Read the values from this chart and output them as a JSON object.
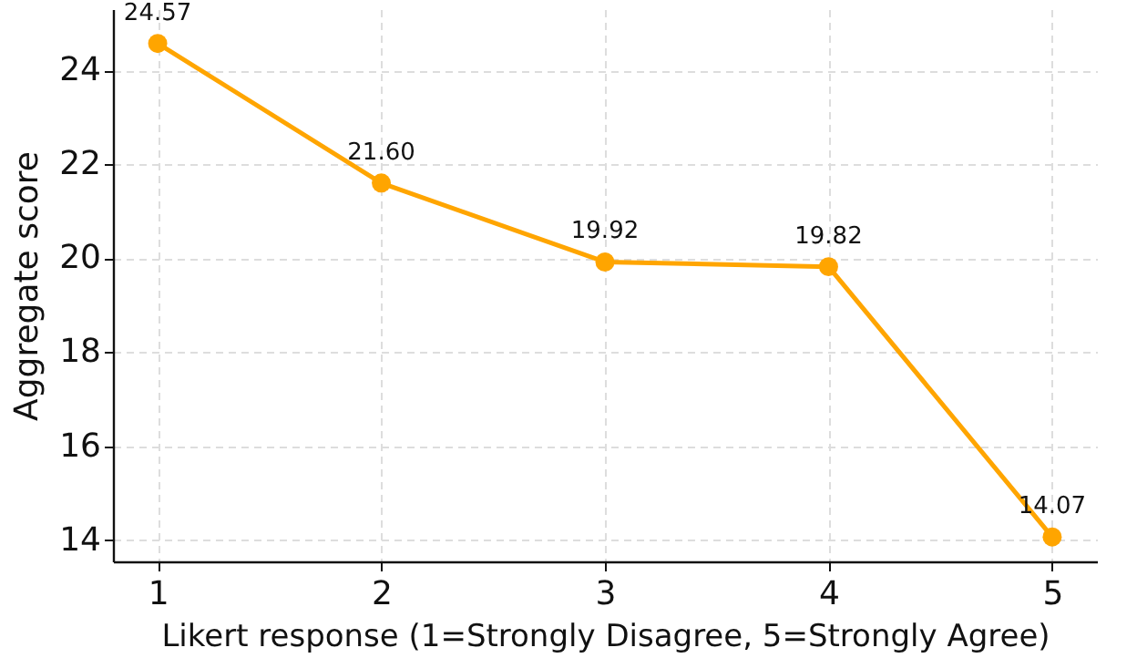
{
  "chart_data": {
    "type": "line",
    "xlabel": "Likert response (1=Strongly Disagree, 5=Strongly Agree)",
    "ylabel": "Aggregate score",
    "x": [
      1,
      2,
      3,
      4,
      5
    ],
    "series": [
      {
        "color": "#ffa500",
        "values": [
          24.57,
          21.6,
          19.92,
          19.82,
          14.07
        ]
      }
    ],
    "value_labels": [
      "24.57",
      "21.60",
      "19.92",
      "19.82",
      "14.07"
    ],
    "xlim": [
      0.8,
      5.2
    ],
    "xticks": [
      1,
      2,
      3,
      4,
      5
    ],
    "ylim": [
      13.55,
      25.3
    ],
    "yticks": [
      14,
      16,
      18,
      20,
      22,
      24
    ],
    "grid": true,
    "marker": "circle",
    "line_style": "solid",
    "legend": false
  }
}
